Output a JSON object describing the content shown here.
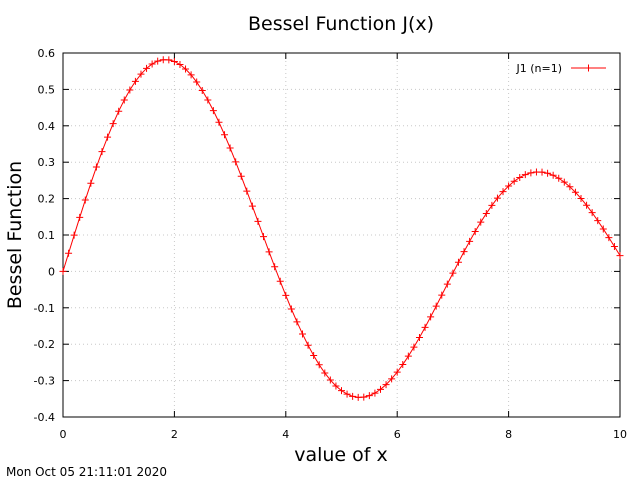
{
  "timestamp": "Mon Oct 05 21:11:01 2020",
  "chart_data": {
    "type": "line",
    "title": "Bessel Function J(x)",
    "xlabel": "value of x",
    "ylabel": "Bessel Function",
    "xlim": [
      0,
      10
    ],
    "ylim": [
      -0.4,
      0.6
    ],
    "xticks": [
      0,
      2,
      4,
      6,
      8,
      10
    ],
    "xtick_labels": [
      "0",
      "2",
      "4",
      "6",
      "8",
      "10"
    ],
    "yticks": [
      -0.4,
      -0.3,
      -0.2,
      -0.1,
      0,
      0.1,
      0.2,
      0.3,
      0.4,
      0.5,
      0.6
    ],
    "ytick_labels": [
      "-0.4",
      "-0.3",
      "-0.2",
      "-0.1",
      "0",
      "0.1",
      "0.2",
      "0.3",
      "0.4",
      "0.5",
      "0.6"
    ],
    "grid": true,
    "legend_position": "top-right",
    "marker": "plus",
    "color": "#ff0000",
    "series": [
      {
        "name": "J1 (n=1)",
        "x": [
          0,
          0.1,
          0.2,
          0.3,
          0.4,
          0.5,
          0.6,
          0.7,
          0.8,
          0.9,
          1,
          1.1,
          1.2,
          1.3,
          1.4,
          1.5,
          1.6,
          1.7,
          1.8,
          1.9,
          2,
          2.1,
          2.2,
          2.3,
          2.4,
          2.5,
          2.6,
          2.7,
          2.8,
          2.9,
          3,
          3.1,
          3.2,
          3.3,
          3.4,
          3.5,
          3.6,
          3.7,
          3.8,
          3.9,
          4,
          4.1,
          4.2,
          4.3,
          4.4,
          4.5,
          4.6,
          4.7,
          4.8,
          4.9,
          5,
          5.1,
          5.2,
          5.3,
          5.4,
          5.5,
          5.6,
          5.7,
          5.8,
          5.9,
          6,
          6.1,
          6.2,
          6.3,
          6.4,
          6.5,
          6.6,
          6.7,
          6.8,
          6.9,
          7,
          7.1,
          7.2,
          7.3,
          7.4,
          7.5,
          7.6,
          7.7,
          7.8,
          7.9,
          8,
          8.1,
          8.2,
          8.3,
          8.4,
          8.5,
          8.6,
          8.7,
          8.8,
          8.9,
          9,
          9.1,
          9.2,
          9.3,
          9.4,
          9.5,
          9.6,
          9.7,
          9.8,
          9.9,
          10
        ],
        "values": [
          0,
          0.0499,
          0.0995,
          0.1483,
          0.196,
          0.2423,
          0.2867,
          0.329,
          0.3688,
          0.4059,
          0.4401,
          0.471,
          0.4983,
          0.522,
          0.5419,
          0.5579,
          0.5699,
          0.5778,
          0.5815,
          0.5812,
          0.5767,
          0.5683,
          0.556,
          0.5399,
          0.5202,
          0.4971,
          0.4708,
          0.4416,
          0.4097,
          0.3754,
          0.3391,
          0.3009,
          0.2613,
          0.2207,
          0.1792,
          0.1374,
          0.0955,
          0.0538,
          0.0128,
          -0.0272,
          -0.066,
          -0.1033,
          -0.1386,
          -0.1719,
          -0.2028,
          -0.2311,
          -0.2566,
          -0.2791,
          -0.2985,
          -0.3147,
          -0.3276,
          -0.3371,
          -0.3432,
          -0.346,
          -0.3453,
          -0.3414,
          -0.3343,
          -0.3241,
          -0.311,
          -0.2951,
          -0.2767,
          -0.2559,
          -0.2329,
          -0.2081,
          -0.1816,
          -0.1538,
          -0.125,
          -0.0953,
          -0.0652,
          -0.0349,
          -0.0047,
          0.0252,
          0.0543,
          0.0826,
          0.1096,
          0.1352,
          0.1592,
          0.1813,
          0.2014,
          0.2192,
          0.2346,
          0.2476,
          0.258,
          0.2657,
          0.2708,
          0.2731,
          0.2728,
          0.2697,
          0.2641,
          0.2559,
          0.2453,
          0.2324,
          0.2174,
          0.2004,
          0.1816,
          0.1613,
          0.1395,
          0.1166,
          0.0928,
          0.0684,
          0.0435
        ]
      }
    ]
  }
}
